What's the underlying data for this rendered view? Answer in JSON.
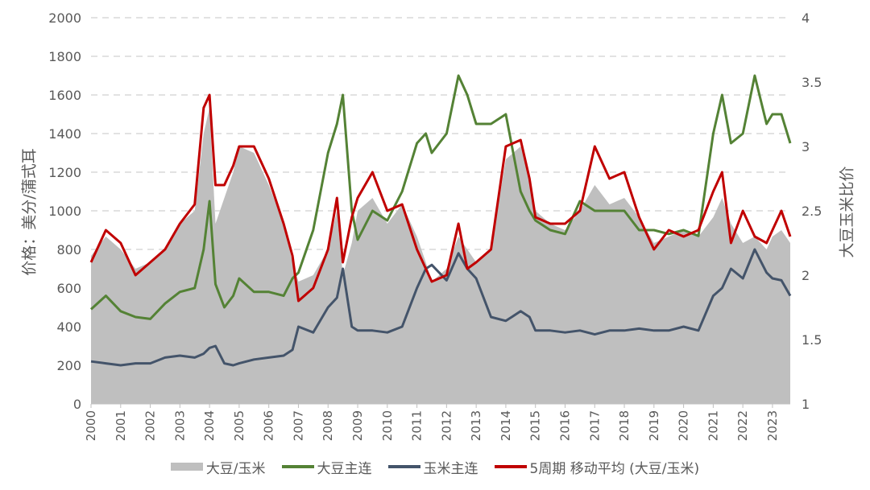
{
  "chart_data": {
    "type": "line",
    "title": "",
    "ylabel_left": "价格：美分/蒲式耳",
    "ylabel_right": "大豆玉米比价",
    "ylim_left": [
      0,
      2000
    ],
    "ylim_right": [
      1,
      4
    ],
    "yticks_left": [
      0,
      200,
      400,
      600,
      800,
      1000,
      1200,
      1400,
      1600,
      1800,
      2000
    ],
    "yticks_right": [
      "1",
      "1.5",
      "2",
      "2.5",
      "3",
      "3.5",
      "4"
    ],
    "xlim": [
      2000,
      2023.6
    ],
    "xticks": [
      "2000",
      "2001",
      "2002",
      "2003",
      "2004",
      "2005",
      "2006",
      "2007",
      "2008",
      "2009",
      "2010",
      "2011",
      "2012",
      "2013",
      "2014",
      "2015",
      "2016",
      "2017",
      "2018",
      "2019",
      "2020",
      "2021",
      "2022",
      "2023"
    ],
    "grid": "horizontal dashed",
    "legend_position": "bottom",
    "x": [
      2000.0,
      2000.5,
      2001.0,
      2001.5,
      2002.0,
      2002.5,
      2003.0,
      2003.5,
      2003.8,
      2004.0,
      2004.2,
      2004.5,
      2004.8,
      2005.0,
      2005.5,
      2006.0,
      2006.5,
      2006.8,
      2007.0,
      2007.5,
      2008.0,
      2008.3,
      2008.5,
      2008.8,
      2009.0,
      2009.5,
      2010.0,
      2010.5,
      2011.0,
      2011.3,
      2011.5,
      2012.0,
      2012.4,
      2012.7,
      2013.0,
      2013.5,
      2014.0,
      2014.5,
      2014.8,
      2015.0,
      2015.5,
      2016.0,
      2016.5,
      2017.0,
      2017.5,
      2018.0,
      2018.5,
      2019.0,
      2019.5,
      2020.0,
      2020.5,
      2021.0,
      2021.3,
      2021.6,
      2022.0,
      2022.4,
      2022.8,
      2023.0,
      2023.3,
      2023.6
    ],
    "series": [
      {
        "name": "大豆/玉米",
        "axis": "right",
        "chart_type": "area",
        "color": "#bfbfbf",
        "values": [
          2.15,
          2.3,
          2.2,
          2.05,
          2.1,
          2.2,
          2.4,
          2.5,
          3.1,
          3.3,
          2.4,
          2.6,
          2.8,
          3.0,
          2.95,
          2.7,
          2.4,
          2.1,
          1.95,
          2.0,
          2.2,
          2.5,
          2.0,
          2.25,
          2.5,
          2.6,
          2.4,
          2.55,
          2.3,
          2.1,
          1.95,
          2.05,
          2.3,
          2.2,
          2.1,
          2.2,
          2.9,
          3.0,
          2.75,
          2.5,
          2.4,
          2.35,
          2.5,
          2.7,
          2.55,
          2.6,
          2.45,
          2.25,
          2.3,
          2.35,
          2.3,
          2.45,
          2.6,
          2.4,
          2.25,
          2.3,
          2.2,
          2.3,
          2.35,
          2.25
        ]
      },
      {
        "name": "大豆主连",
        "axis": "left",
        "color": "#548235",
        "values": [
          490,
          560,
          480,
          450,
          440,
          520,
          580,
          600,
          800,
          1050,
          620,
          500,
          560,
          650,
          580,
          580,
          560,
          650,
          680,
          900,
          1300,
          1450,
          1600,
          1000,
          850,
          1000,
          950,
          1100,
          1350,
          1400,
          1300,
          1400,
          1700,
          1600,
          1450,
          1450,
          1500,
          1100,
          1000,
          950,
          900,
          880,
          1050,
          1000,
          1000,
          1000,
          900,
          900,
          880,
          900,
          870,
          1400,
          1600,
          1350,
          1400,
          1700,
          1450,
          1500,
          1500,
          1350
        ]
      },
      {
        "name": "玉米主连",
        "axis": "left",
        "color": "#44546a",
        "values": [
          220,
          210,
          200,
          210,
          210,
          240,
          250,
          240,
          260,
          290,
          300,
          210,
          200,
          210,
          230,
          240,
          250,
          280,
          400,
          370,
          500,
          550,
          700,
          400,
          380,
          380,
          370,
          400,
          600,
          700,
          720,
          640,
          780,
          700,
          650,
          450,
          430,
          480,
          450,
          380,
          380,
          370,
          380,
          360,
          380,
          380,
          390,
          380,
          380,
          400,
          380,
          560,
          600,
          700,
          650,
          800,
          680,
          650,
          640,
          560
        ]
      },
      {
        "name": "5周期 移动平均 (大豆/玉米)",
        "axis": "right",
        "color": "#c00000",
        "values": [
          2.1,
          2.35,
          2.25,
          2.0,
          2.1,
          2.2,
          2.4,
          2.55,
          3.3,
          3.4,
          2.7,
          2.7,
          2.85,
          3.0,
          3.0,
          2.75,
          2.4,
          2.15,
          1.8,
          1.9,
          2.2,
          2.6,
          2.1,
          2.45,
          2.6,
          2.8,
          2.5,
          2.55,
          2.2,
          2.05,
          1.95,
          2.0,
          2.4,
          2.05,
          2.1,
          2.2,
          3.0,
          3.05,
          2.75,
          2.45,
          2.4,
          2.4,
          2.5,
          3.0,
          2.75,
          2.8,
          2.45,
          2.2,
          2.35,
          2.3,
          2.35,
          2.65,
          2.8,
          2.25,
          2.5,
          2.3,
          2.25,
          2.35,
          2.5,
          2.3
        ]
      }
    ]
  }
}
